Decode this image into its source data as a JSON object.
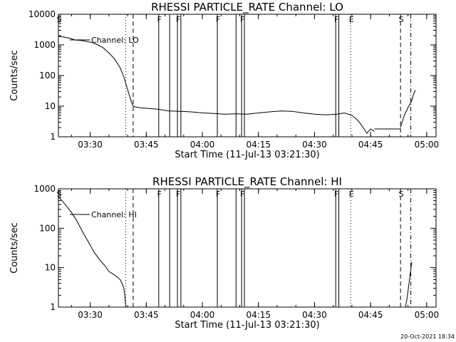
{
  "footer": {
    "timestamp": "20-Oct-2021 18:34"
  },
  "chart_data": [
    {
      "type": "line",
      "title": "RHESSI PARTICLE_RATE Channel: LO",
      "xlabel": "Start Time (11-Jul-13 03:21:30)",
      "ylabel": "Counts/sec",
      "yscale": "log",
      "ylim": [
        1,
        10000
      ],
      "xlim": [
        "03:21:30",
        "05:02:30"
      ],
      "x_tick_labels": [
        "03:30",
        "03:45",
        "04:00",
        "04:15",
        "04:30",
        "04:45",
        "05:00"
      ],
      "y_tick_labels": [
        "1",
        "10",
        "100",
        "1000",
        "10000"
      ],
      "legend": "Channel: LO",
      "series": [
        {
          "name": "Channel: LO",
          "segments": [
            {
              "x": [
                "03:21:30",
                "03:23:00",
                "03:24:30",
                "03:26:00",
                "03:27:30",
                "03:29:00",
                "03:30:30",
                "03:32:00",
                "03:33:30",
                "03:35:00",
                "03:36:30",
                "03:38:00",
                "03:39:00",
                "03:40:00",
                "03:40:30",
                "03:41:00",
                "03:41:30",
                "03:42:00",
                "03:43:00",
                "03:45:00",
                "03:48:00",
                "03:51:00",
                "03:54:00",
                "03:57:00",
                "04:00:00",
                "04:03:00",
                "04:06:00",
                "04:09:00",
                "04:12:00",
                "04:15:00",
                "04:18:00",
                "04:21:00",
                "04:24:00",
                "04:27:00",
                "04:30:00",
                "04:33:00",
                "04:36:00",
                "04:38:00",
                "04:40:00",
                "04:41:00",
                "04:42:00",
                "04:43:00",
                "04:44:00",
                "04:45:00",
                "04:46:00"
              ],
              "y": [
                1900,
                1800,
                1650,
                1450,
                1400,
                1300,
                1200,
                1000,
                800,
                550,
                350,
                180,
                90,
                35,
                22,
                14,
                10,
                9.5,
                9,
                8.5,
                8,
                7,
                6.8,
                6.5,
                6,
                5.8,
                5.5,
                5.6,
                5.5,
                6,
                6.5,
                7,
                6.8,
                6,
                5.5,
                5.2,
                5.5,
                6,
                5,
                4,
                3,
                2,
                1.3,
                1.8,
                1.5
              ]
            },
            {
              "x": [
                "04:46:00",
                "04:48:00",
                "04:50:00",
                "04:52:00",
                "04:53:00"
              ],
              "y": [
                1.8,
                1.8,
                1.8,
                1.8,
                1.8
              ]
            },
            {
              "x": [
                "04:53:00",
                "04:54:00",
                "04:55:00",
                "04:56:00",
                "04:56:30",
                "04:57:00"
              ],
              "y": [
                2,
                5,
                9,
                15,
                25,
                33
              ]
            }
          ]
        }
      ],
      "markers": [
        {
          "label": "S",
          "time": "03:21:30",
          "style": "none"
        },
        {
          "label": "",
          "time": "03:39:30",
          "style": "dotted"
        },
        {
          "label": "",
          "time": "03:41:30",
          "style": "dashed"
        },
        {
          "label": "F",
          "time": "03:48:20",
          "style": "solid"
        },
        {
          "label": "",
          "time": "03:51:15",
          "style": "solid"
        },
        {
          "label": "F",
          "time": "03:53:20",
          "style": "solid"
        },
        {
          "label": "",
          "time": "03:54:15",
          "style": "solid"
        },
        {
          "label": "F",
          "time": "04:04:00",
          "style": "solid"
        },
        {
          "label": "",
          "time": "04:09:00",
          "style": "solid"
        },
        {
          "label": "F",
          "time": "04:10:30",
          "style": "solid"
        },
        {
          "label": "",
          "time": "04:11:15",
          "style": "solid"
        },
        {
          "label": "F",
          "time": "04:35:40",
          "style": "solid"
        },
        {
          "label": "",
          "time": "04:36:30",
          "style": "solid"
        },
        {
          "label": "E",
          "time": "04:39:40",
          "style": "dotted"
        },
        {
          "label": "S",
          "time": "04:53:00",
          "style": "dashed"
        },
        {
          "label": "",
          "time": "04:55:45",
          "style": "dash-dot"
        }
      ]
    },
    {
      "type": "line",
      "title": "RHESSI PARTICLE_RATE Channel: HI",
      "xlabel": "Start Time (11-Jul-13 03:21:30)",
      "ylabel": "Counts/sec",
      "yscale": "log",
      "ylim": [
        1,
        1000
      ],
      "xlim": [
        "03:21:30",
        "05:02:30"
      ],
      "x_tick_labels": [
        "03:30",
        "03:45",
        "04:00",
        "04:15",
        "04:30",
        "04:45",
        "05:00"
      ],
      "y_tick_labels": [
        "1",
        "10",
        "100",
        "1000"
      ],
      "legend": "Channel: HI",
      "series": [
        {
          "name": "Channel: HI",
          "segments": [
            {
              "x": [
                "03:21:30",
                "03:22:30",
                "03:23:30",
                "03:25:00",
                "03:26:30",
                "03:28:00",
                "03:29:30",
                "03:31:00",
                "03:32:30",
                "03:34:00",
                "03:35:00",
                "03:36:00",
                "03:37:00",
                "03:38:00",
                "03:38:30",
                "03:39:00",
                "03:39:15",
                "03:39:30"
              ],
              "y": [
                620,
                500,
                380,
                250,
                150,
                80,
                45,
                25,
                16,
                11,
                8,
                7,
                6,
                5,
                4,
                3,
                2,
                1
              ]
            },
            {
              "x": [
                "04:54:20",
                "04:54:40",
                "04:55:00",
                "04:55:20",
                "04:55:40",
                "04:56:00"
              ],
              "y": [
                1,
                1.5,
                2.5,
                4.5,
                8,
                14
              ]
            }
          ]
        }
      ],
      "markers": [
        {
          "label": "S",
          "time": "03:21:30",
          "style": "none"
        },
        {
          "label": "",
          "time": "03:39:30",
          "style": "dotted"
        },
        {
          "label": "",
          "time": "03:41:30",
          "style": "dashed"
        },
        {
          "label": "F",
          "time": "03:48:20",
          "style": "solid"
        },
        {
          "label": "",
          "time": "03:51:15",
          "style": "solid"
        },
        {
          "label": "F",
          "time": "03:53:20",
          "style": "solid"
        },
        {
          "label": "",
          "time": "03:54:15",
          "style": "solid"
        },
        {
          "label": "F",
          "time": "04:04:00",
          "style": "solid"
        },
        {
          "label": "",
          "time": "04:09:00",
          "style": "solid"
        },
        {
          "label": "F",
          "time": "04:10:30",
          "style": "solid"
        },
        {
          "label": "",
          "time": "04:11:15",
          "style": "solid"
        },
        {
          "label": "F",
          "time": "04:35:40",
          "style": "solid"
        },
        {
          "label": "",
          "time": "04:36:30",
          "style": "solid"
        },
        {
          "label": "E",
          "time": "04:39:40",
          "style": "dotted"
        },
        {
          "label": "S",
          "time": "04:53:00",
          "style": "dashed"
        },
        {
          "label": "",
          "time": "04:55:45",
          "style": "dash-dot"
        }
      ]
    }
  ]
}
